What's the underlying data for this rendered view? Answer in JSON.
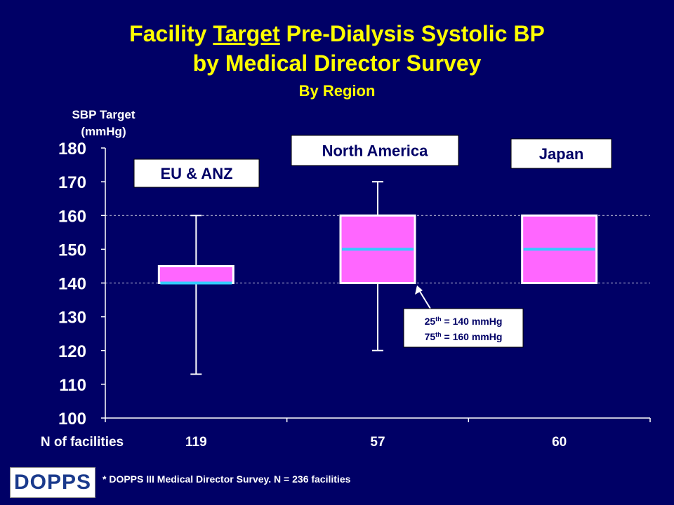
{
  "title": {
    "line1_pre": "Facility ",
    "line1_underline": "Target",
    "line1_post": " Pre-Dialysis Systolic BP",
    "line2": "by Medical Director Survey",
    "line3": "By Region"
  },
  "chart_data": {
    "type": "boxplot",
    "ylabel_line1": "SBP Target",
    "ylabel_line2": "(mmHg)",
    "ylim": [
      100,
      180
    ],
    "yticks": [
      100,
      110,
      120,
      130,
      140,
      150,
      160,
      170,
      180
    ],
    "reference_lines": [
      140,
      160
    ],
    "n_label": "N of facilities",
    "groups": [
      {
        "name": "EU & ANZ",
        "n": "119",
        "min": 113,
        "q1": 140,
        "median": 140,
        "q3": 145,
        "max": 160
      },
      {
        "name": "North America",
        "n": "57",
        "min": 120,
        "q1": 140,
        "median": 150,
        "q3": 160,
        "max": 170
      },
      {
        "name": "Japan",
        "n": "60",
        "min": 140,
        "q1": 140,
        "median": 150,
        "q3": 160,
        "max": 160
      }
    ],
    "annotation": {
      "line1_pre": "25",
      "line1_sup": "th",
      "line1_post": " = 140 mmHg",
      "line2_pre": "75",
      "line2_sup": "th",
      "line2_post": " = 160 mmHg"
    }
  },
  "footnote": "* DOPPS III Medical Director Survey. N = 236 facilities",
  "logo": {
    "text": "DOPPS"
  },
  "colors": {
    "background": "#000066",
    "title": "#FFFF00",
    "box": "#FF66FF",
    "median": "#33CCFF",
    "text": "#FFFFFF"
  }
}
